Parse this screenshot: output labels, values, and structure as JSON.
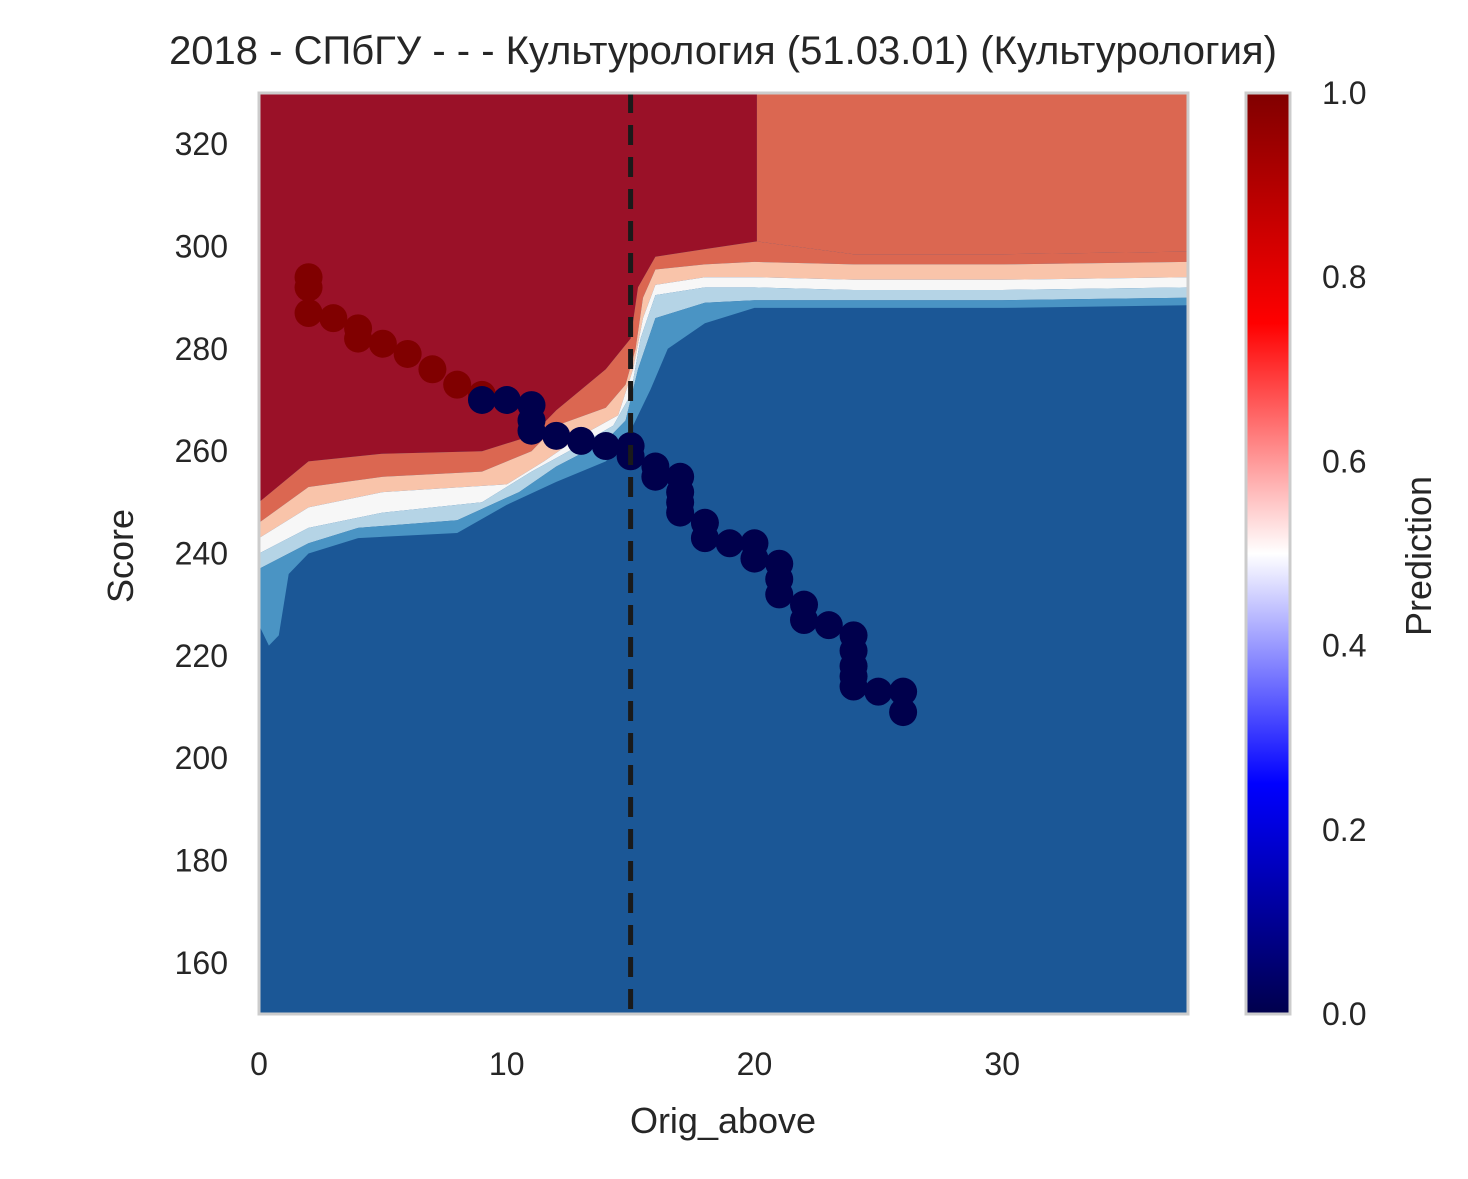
{
  "chart_data": {
    "type": "heatmap",
    "title": "2018 - СПбГУ - - - Культурология (51.03.01) (Культурология)",
    "xlabel": "Orig_above",
    "ylabel": "Score",
    "xlim": [
      0,
      37.5
    ],
    "ylim": [
      150,
      330
    ],
    "xticks": [
      0,
      10,
      20,
      30
    ],
    "yticks": [
      160,
      180,
      200,
      220,
      240,
      260,
      280,
      300,
      320
    ],
    "grid": false,
    "vline": {
      "x": 15,
      "style": "dashed",
      "color": "#1a1a1a"
    },
    "colorbar": {
      "label": "Prediction",
      "range": [
        0,
        1
      ],
      "ticks": [
        0.0,
        0.2,
        0.4,
        0.6,
        0.8,
        1.0
      ],
      "tick_labels": [
        "0.0",
        "0.2",
        "0.4",
        "0.6",
        "0.8",
        "1.0"
      ],
      "colormap": "seismic",
      "stops": [
        {
          "v": 0.0,
          "color": "#00004c"
        },
        {
          "v": 0.25,
          "color": "#0000ff"
        },
        {
          "v": 0.5,
          "color": "#ffffff"
        },
        {
          "v": 0.75,
          "color": "#ff0000"
        },
        {
          "v": 1.0,
          "color": "#800000"
        }
      ]
    },
    "contour_levels": [
      {
        "level": "0.0-0.1",
        "color": "#1b5796"
      },
      {
        "level": "0.1-0.2",
        "color": "#4a94c4"
      },
      {
        "level": "0.2-0.3",
        "color": "#b5d4e6"
      },
      {
        "level": "0.4-0.5",
        "color": "#f7f7f7"
      },
      {
        "level": "0.6-0.7",
        "color": "#f9c4aa"
      },
      {
        "level": "0.7-0.8",
        "color": "#db6751"
      },
      {
        "level": "0.8-1.0",
        "color": "#9a1128"
      }
    ],
    "regions": [
      {
        "name": "high-score-region",
        "color": "#9a1128",
        "points": [
          [
            0,
            330
          ],
          [
            20.1,
            330
          ],
          [
            20.1,
            301
          ],
          [
            18,
            299.5
          ],
          [
            16,
            298
          ],
          [
            15.3,
            292
          ],
          [
            15,
            282
          ],
          [
            14,
            276
          ],
          [
            12,
            268
          ],
          [
            11,
            263
          ],
          [
            9,
            260
          ],
          [
            5,
            259.5
          ],
          [
            2,
            258
          ],
          [
            0,
            250
          ]
        ]
      },
      {
        "name": "upper-right-region",
        "color": "#db6751",
        "points": [
          [
            20.1,
            330
          ],
          [
            37.5,
            330
          ],
          [
            37.5,
            299
          ],
          [
            30,
            298.5
          ],
          [
            24,
            298.5
          ],
          [
            20.1,
            301
          ]
        ]
      },
      {
        "name": "transition-band-red",
        "color": "#db6751",
        "points": [
          [
            0,
            250
          ],
          [
            2,
            258
          ],
          [
            5,
            259.5
          ],
          [
            9,
            260
          ],
          [
            11,
            263
          ],
          [
            12,
            268
          ],
          [
            14,
            276
          ],
          [
            15,
            282
          ],
          [
            15.3,
            292
          ],
          [
            16,
            298
          ],
          [
            18,
            299.5
          ],
          [
            20.1,
            301
          ],
          [
            24,
            298.5
          ],
          [
            30,
            298.5
          ],
          [
            37.5,
            299
          ],
          [
            37.5,
            297
          ],
          [
            30,
            296.5
          ],
          [
            24,
            296.5
          ],
          [
            20,
            297
          ],
          [
            18,
            296.5
          ],
          [
            16,
            295.5
          ],
          [
            15.5,
            290
          ],
          [
            15.2,
            280
          ],
          [
            14.8,
            273
          ],
          [
            14,
            268.5
          ],
          [
            12,
            265
          ],
          [
            11,
            260
          ],
          [
            9,
            256
          ],
          [
            5,
            255
          ],
          [
            2,
            253
          ],
          [
            0,
            246
          ]
        ]
      },
      {
        "name": "transition-band-salmon",
        "color": "#f9c4aa",
        "points": [
          [
            0,
            246
          ],
          [
            2,
            253
          ],
          [
            5,
            255
          ],
          [
            9,
            256
          ],
          [
            11,
            260
          ],
          [
            12,
            265
          ],
          [
            14,
            268.5
          ],
          [
            14.8,
            273
          ],
          [
            15.2,
            280
          ],
          [
            15.5,
            290
          ],
          [
            16,
            295.5
          ],
          [
            18,
            296.5
          ],
          [
            20,
            297
          ],
          [
            24,
            296.5
          ],
          [
            30,
            296.5
          ],
          [
            37.5,
            297
          ],
          [
            37.5,
            294
          ],
          [
            30,
            293.5
          ],
          [
            24,
            293.5
          ],
          [
            20,
            294
          ],
          [
            18,
            294
          ],
          [
            16,
            292.5
          ],
          [
            15.5,
            286
          ],
          [
            15.1,
            276
          ],
          [
            14.5,
            267
          ],
          [
            13,
            263
          ],
          [
            11.5,
            258
          ],
          [
            10,
            253.5
          ],
          [
            5,
            252
          ],
          [
            2,
            249
          ],
          [
            0,
            243
          ]
        ]
      },
      {
        "name": "transition-band-white",
        "color": "#f7f7f7",
        "points": [
          [
            0,
            243
          ],
          [
            2,
            249
          ],
          [
            5,
            252
          ],
          [
            10,
            253.5
          ],
          [
            11.5,
            258
          ],
          [
            13,
            263
          ],
          [
            14.5,
            267
          ],
          [
            15.1,
            276
          ],
          [
            15.5,
            286
          ],
          [
            16,
            292.5
          ],
          [
            18,
            294
          ],
          [
            20,
            294
          ],
          [
            24,
            293.5
          ],
          [
            30,
            293.5
          ],
          [
            37.5,
            294
          ],
          [
            37.5,
            292
          ],
          [
            30,
            291.5
          ],
          [
            24,
            291.5
          ],
          [
            20,
            292
          ],
          [
            18,
            292
          ],
          [
            16,
            290.5
          ],
          [
            15.4,
            282
          ],
          [
            15,
            271
          ],
          [
            14.3,
            265
          ],
          [
            12.5,
            260
          ],
          [
            11,
            256
          ],
          [
            9,
            250
          ],
          [
            5,
            248
          ],
          [
            2,
            245
          ],
          [
            0,
            240
          ]
        ]
      },
      {
        "name": "transition-band-lightblue",
        "color": "#b5d4e6",
        "points": [
          [
            0,
            240
          ],
          [
            2,
            245
          ],
          [
            5,
            248
          ],
          [
            9,
            250
          ],
          [
            11,
            256
          ],
          [
            12.5,
            260
          ],
          [
            14.3,
            265
          ],
          [
            15,
            271
          ],
          [
            15.4,
            282
          ],
          [
            16,
            290.5
          ],
          [
            18,
            292
          ],
          [
            20,
            292
          ],
          [
            24,
            291.5
          ],
          [
            30,
            291.5
          ],
          [
            37.5,
            292
          ],
          [
            37.5,
            290
          ],
          [
            30,
            289.5
          ],
          [
            20,
            289.5
          ],
          [
            18,
            289
          ],
          [
            16,
            286
          ],
          [
            15.3,
            276
          ],
          [
            14.8,
            266
          ],
          [
            14,
            262
          ],
          [
            12,
            257
          ],
          [
            10.5,
            252
          ],
          [
            8,
            246.5
          ],
          [
            4,
            245
          ],
          [
            2,
            242
          ],
          [
            0,
            237
          ]
        ]
      },
      {
        "name": "transition-band-midblue",
        "color": "#4a94c4",
        "points": [
          [
            0,
            237
          ],
          [
            2,
            242
          ],
          [
            4,
            245
          ],
          [
            8,
            246.5
          ],
          [
            10.5,
            252
          ],
          [
            12,
            257
          ],
          [
            14,
            262
          ],
          [
            14.8,
            266
          ],
          [
            15.3,
            276
          ],
          [
            16,
            286
          ],
          [
            18,
            289
          ],
          [
            20,
            289.5
          ],
          [
            30,
            289.5
          ],
          [
            37.5,
            290
          ],
          [
            37.5,
            288.5
          ],
          [
            30,
            288
          ],
          [
            20,
            288
          ],
          [
            18,
            285
          ],
          [
            16.5,
            280
          ],
          [
            15.8,
            272
          ],
          [
            15,
            264
          ],
          [
            14,
            258
          ],
          [
            12,
            254
          ],
          [
            10,
            249.5
          ],
          [
            8,
            244
          ],
          [
            4,
            243
          ],
          [
            2,
            240
          ],
          [
            1.2,
            236
          ],
          [
            0.8,
            224
          ],
          [
            0.4,
            222
          ],
          [
            0,
            226
          ]
        ]
      }
    ],
    "scatter": {
      "red_points": [
        [
          2,
          294
        ],
        [
          2,
          292
        ],
        [
          2,
          287
        ],
        [
          3,
          286
        ],
        [
          4,
          284
        ],
        [
          4,
          282
        ],
        [
          5,
          281
        ],
        [
          6,
          279
        ],
        [
          7,
          276
        ],
        [
          8,
          273
        ],
        [
          9,
          271
        ]
      ],
      "navy_points": [
        [
          9,
          270
        ],
        [
          10,
          270
        ],
        [
          11,
          269
        ],
        [
          11,
          266
        ],
        [
          11,
          264
        ],
        [
          12,
          263
        ],
        [
          13,
          262
        ],
        [
          14,
          261
        ],
        [
          15,
          261
        ],
        [
          15,
          259
        ],
        [
          16,
          257
        ],
        [
          16,
          255
        ],
        [
          17,
          255
        ],
        [
          17,
          252
        ],
        [
          17,
          250
        ],
        [
          17,
          248
        ],
        [
          18,
          246
        ],
        [
          18,
          243
        ],
        [
          19,
          242
        ],
        [
          20,
          242
        ],
        [
          20,
          239
        ],
        [
          21,
          238
        ],
        [
          21,
          235
        ],
        [
          21,
          232
        ],
        [
          22,
          230
        ],
        [
          22,
          227
        ],
        [
          23,
          226
        ],
        [
          24,
          224
        ],
        [
          24,
          221
        ],
        [
          24,
          218
        ],
        [
          24,
          216
        ],
        [
          24,
          214
        ],
        [
          25,
          213
        ],
        [
          26,
          213
        ],
        [
          26,
          209
        ]
      ],
      "red_color": "#800000",
      "navy_color": "#00004c"
    }
  }
}
